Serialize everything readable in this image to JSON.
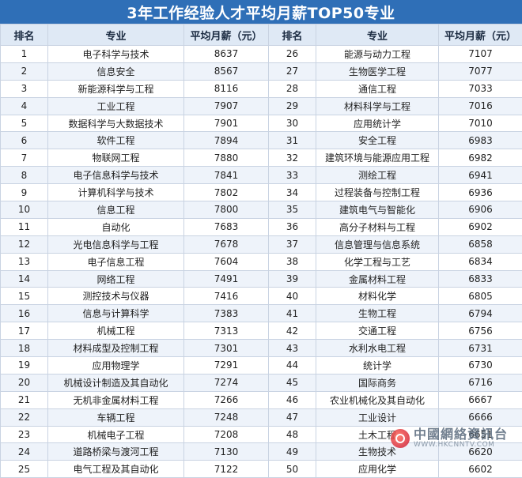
{
  "title": "3年工作经验人才平均月薪TOP50专业",
  "headers": [
    "排名",
    "专业",
    "平均月薪（元）",
    "排名",
    "专业",
    "平均月薪（元）"
  ],
  "left_rows": [
    {
      "rank": "1",
      "major": "电子科学与技术",
      "salary": "8637"
    },
    {
      "rank": "2",
      "major": "信息安全",
      "salary": "8567"
    },
    {
      "rank": "3",
      "major": "新能源科学与工程",
      "salary": "8116"
    },
    {
      "rank": "4",
      "major": "工业工程",
      "salary": "7907"
    },
    {
      "rank": "5",
      "major": "数据科学与大数据技术",
      "salary": "7901"
    },
    {
      "rank": "6",
      "major": "软件工程",
      "salary": "7894"
    },
    {
      "rank": "7",
      "major": "物联网工程",
      "salary": "7880"
    },
    {
      "rank": "8",
      "major": "电子信息科学与技术",
      "salary": "7841"
    },
    {
      "rank": "9",
      "major": "计算机科学与技术",
      "salary": "7802"
    },
    {
      "rank": "10",
      "major": "信息工程",
      "salary": "7800"
    },
    {
      "rank": "11",
      "major": "自动化",
      "salary": "7683"
    },
    {
      "rank": "12",
      "major": "光电信息科学与工程",
      "salary": "7678"
    },
    {
      "rank": "13",
      "major": "电子信息工程",
      "salary": "7604"
    },
    {
      "rank": "14",
      "major": "网络工程",
      "salary": "7491"
    },
    {
      "rank": "15",
      "major": "测控技术与仪器",
      "salary": "7416"
    },
    {
      "rank": "16",
      "major": "信息与计算科学",
      "salary": "7383"
    },
    {
      "rank": "17",
      "major": "机械工程",
      "salary": "7313"
    },
    {
      "rank": "18",
      "major": "材料成型及控制工程",
      "salary": "7301"
    },
    {
      "rank": "19",
      "major": "应用物理学",
      "salary": "7291"
    },
    {
      "rank": "20",
      "major": "机械设计制造及其自动化",
      "salary": "7274"
    },
    {
      "rank": "21",
      "major": "无机非金属材料工程",
      "salary": "7266"
    },
    {
      "rank": "22",
      "major": "车辆工程",
      "salary": "7248"
    },
    {
      "rank": "23",
      "major": "机械电子工程",
      "salary": "7208"
    },
    {
      "rank": "24",
      "major": "道路桥梁与渡河工程",
      "salary": "7130"
    },
    {
      "rank": "25",
      "major": "电气工程及其自动化",
      "salary": "7122"
    }
  ],
  "right_rows": [
    {
      "rank": "26",
      "major": "能源与动力工程",
      "salary": "7107"
    },
    {
      "rank": "27",
      "major": "生物医学工程",
      "salary": "7077"
    },
    {
      "rank": "28",
      "major": "通信工程",
      "salary": "7033"
    },
    {
      "rank": "29",
      "major": "材料科学与工程",
      "salary": "7016"
    },
    {
      "rank": "30",
      "major": "应用统计学",
      "salary": "7010"
    },
    {
      "rank": "31",
      "major": "安全工程",
      "salary": "6983"
    },
    {
      "rank": "32",
      "major": "建筑环境与能源应用工程",
      "salary": "6982"
    },
    {
      "rank": "33",
      "major": "测绘工程",
      "salary": "6941"
    },
    {
      "rank": "34",
      "major": "过程装备与控制工程",
      "salary": "6936"
    },
    {
      "rank": "35",
      "major": "建筑电气与智能化",
      "salary": "6906"
    },
    {
      "rank": "36",
      "major": "高分子材料与工程",
      "salary": "6902"
    },
    {
      "rank": "37",
      "major": "信息管理与信息系统",
      "salary": "6858"
    },
    {
      "rank": "38",
      "major": "化学工程与工艺",
      "salary": "6834"
    },
    {
      "rank": "39",
      "major": "金属材料工程",
      "salary": "6833"
    },
    {
      "rank": "40",
      "major": "材料化学",
      "salary": "6805"
    },
    {
      "rank": "41",
      "major": "生物工程",
      "salary": "6794"
    },
    {
      "rank": "42",
      "major": "交通工程",
      "salary": "6756"
    },
    {
      "rank": "43",
      "major": "水利水电工程",
      "salary": "6731"
    },
    {
      "rank": "44",
      "major": "统计学",
      "salary": "6730"
    },
    {
      "rank": "45",
      "major": "国际商务",
      "salary": "6716"
    },
    {
      "rank": "46",
      "major": "农业机械化及其自动化",
      "salary": "6667"
    },
    {
      "rank": "47",
      "major": "工业设计",
      "salary": "6666"
    },
    {
      "rank": "48",
      "major": "土木工程",
      "salary": "6651"
    },
    {
      "rank": "49",
      "major": "生物技术",
      "salary": "6620"
    },
    {
      "rank": "50",
      "major": "应用化学",
      "salary": "6602"
    }
  ],
  "watermark": {
    "name": "中國網絡資訊台",
    "url": "WWW.HKCNNTV.COM"
  },
  "colors": {
    "title_bg": "#2f6fb7",
    "header_bg": "#dfe9f5",
    "stripe": "#eef3fa",
    "border": "#c9d3e2"
  }
}
